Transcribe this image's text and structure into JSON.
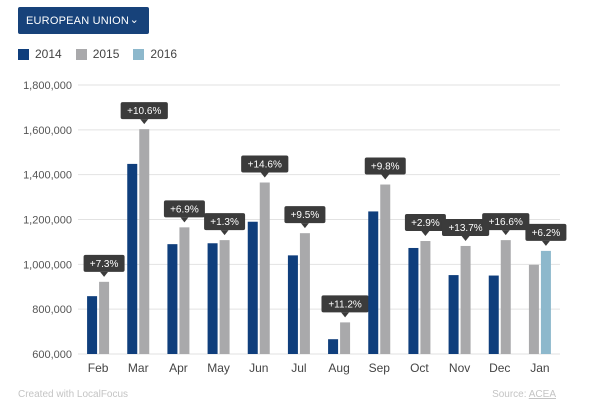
{
  "selector": {
    "label": "EUROPEAN UNION",
    "caret": "⌄"
  },
  "footer": {
    "credit": "Created with LocalFocus",
    "source_label": "Source:",
    "source_link": "ACEA"
  },
  "colors": {
    "2014": "#0f3e7c",
    "2015": "#a9a9ab",
    "2016": "#8db8cc",
    "callout_bg": "#3b3b3b",
    "grid": "#e2e2e2"
  },
  "chart_data": {
    "type": "bar",
    "categories": [
      "Feb",
      "Mar",
      "Apr",
      "May",
      "Jun",
      "Jul",
      "Aug",
      "Sep",
      "Oct",
      "Nov",
      "Dec",
      "Jan"
    ],
    "series": [
      {
        "name": "2014",
        "values": [
          858000,
          1448000,
          1090000,
          1094000,
          1190000,
          1040000,
          666000,
          1236000,
          1073000,
          952000,
          950000,
          null
        ]
      },
      {
        "name": "2015",
        "values": [
          922000,
          1603000,
          1165000,
          1108000,
          1365000,
          1139000,
          741000,
          1356000,
          1104000,
          1082000,
          1108000,
          998000
        ]
      },
      {
        "name": "2016",
        "values": [
          null,
          null,
          null,
          null,
          null,
          null,
          null,
          null,
          null,
          null,
          null,
          1060000
        ]
      }
    ],
    "annotations": [
      "+7.3%",
      "+10.6%",
      "+6.9%",
      "+1.3%",
      "+14.6%",
      "+9.5%",
      "+11.2%",
      "+9.8%",
      "+2.9%",
      "+13.7%",
      "+16.6%",
      "+6.2%"
    ],
    "ylim": [
      600000,
      1800000
    ],
    "yticks": [
      600000,
      800000,
      1000000,
      1200000,
      1400000,
      1600000,
      1800000
    ],
    "ytick_labels": [
      "600,000",
      "800,000",
      "1,000,000",
      "1,200,000",
      "1,400,000",
      "1,600,000",
      "1,800,000"
    ],
    "grid": true,
    "legend": "top-left"
  }
}
